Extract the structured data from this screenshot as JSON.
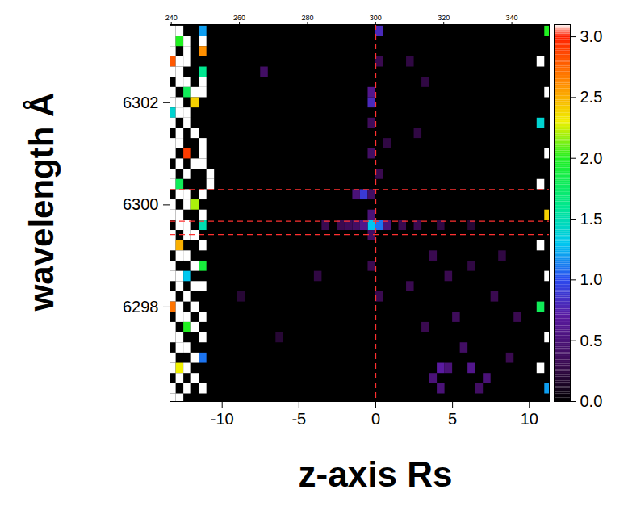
{
  "chart_data": {
    "type": "heatmap",
    "x_label": "z-axis Rs",
    "y_label": "wavelength Å",
    "xlim": [
      -13.4,
      11.3
    ],
    "xticks": [
      -10,
      -5,
      0,
      5,
      10
    ],
    "x2lim": [
      239.6,
      351
    ],
    "x2ticks": [
      240,
      260,
      280,
      300,
      320,
      340
    ],
    "ylim": [
      6296.15,
      6303.53
    ],
    "yticks": [
      6298,
      6300,
      6302
    ],
    "cell_size": {
      "z": 0.5,
      "wavelength": 0.2
    },
    "cells": [
      [
        -13.25,
        6303.4,
        3.3
      ],
      [
        -12.75,
        6303.4,
        3.3
      ],
      [
        -11.25,
        6303.4,
        1.2
      ],
      [
        -13.25,
        6303.2,
        3.3
      ],
      [
        -12.75,
        6303.2,
        2.0
      ],
      [
        -12.25,
        6303.2,
        3.3
      ],
      [
        -11.25,
        6303.2,
        3.3
      ],
      [
        -13.25,
        6303.0,
        3.3
      ],
      [
        -12.25,
        6303.0,
        3.3
      ],
      [
        -11.25,
        6303.0,
        2.6
      ],
      [
        -13.25,
        6302.8,
        2.8
      ],
      [
        -12.75,
        6302.8,
        3.3
      ],
      [
        -12.25,
        6302.8,
        3.3
      ],
      [
        -13.25,
        6302.6,
        3.3
      ],
      [
        -12.75,
        6302.6,
        3.3
      ],
      [
        -11.25,
        6302.6,
        1.6
      ],
      [
        -12.75,
        6302.4,
        3.3
      ],
      [
        -12.25,
        6302.4,
        3.3
      ],
      [
        -11.25,
        6302.4,
        3.3
      ],
      [
        -13.25,
        6302.2,
        3.3
      ],
      [
        -12.25,
        6302.2,
        1.8
      ],
      [
        -11.75,
        6302.2,
        3.3
      ],
      [
        -11.25,
        6302.2,
        3.3
      ],
      [
        -13.25,
        6302.0,
        3.3
      ],
      [
        -12.75,
        6302.0,
        3.3
      ],
      [
        -11.75,
        6302.0,
        2.4
      ],
      [
        -13.25,
        6301.8,
        1.4
      ],
      [
        -12.75,
        6301.8,
        3.3
      ],
      [
        -12.25,
        6301.8,
        3.3
      ],
      [
        -13.25,
        6301.6,
        3.3
      ],
      [
        -12.25,
        6301.6,
        3.3
      ],
      [
        -12.75,
        6301.4,
        3.3
      ],
      [
        -11.75,
        6301.4,
        3.3
      ],
      [
        -13.25,
        6301.2,
        3.3
      ],
      [
        -12.75,
        6301.2,
        3.3
      ],
      [
        -11.25,
        6301.2,
        3.3
      ],
      [
        -13.25,
        6301.0,
        3.3
      ],
      [
        -12.25,
        6301.0,
        2.9
      ],
      [
        -11.25,
        6301.0,
        3.3
      ],
      [
        -12.75,
        6300.8,
        3.3
      ],
      [
        -11.75,
        6300.8,
        3.3
      ],
      [
        -11.25,
        6300.8,
        3.3
      ],
      [
        -13.25,
        6300.6,
        3.3
      ],
      [
        -12.25,
        6300.6,
        3.3
      ],
      [
        -10.75,
        6300.6,
        3.3
      ],
      [
        -13.25,
        6300.4,
        3.3
      ],
      [
        -12.75,
        6300.4,
        1.8
      ],
      [
        -10.75,
        6300.4,
        3.3
      ],
      [
        -12.75,
        6300.2,
        3.3
      ],
      [
        -12.25,
        6300.2,
        3.3
      ],
      [
        -11.25,
        6300.2,
        3.3
      ],
      [
        -13.25,
        6300.0,
        3.3
      ],
      [
        -12.25,
        6300.0,
        3.3
      ],
      [
        -11.75,
        6300.0,
        2.2
      ],
      [
        -13.25,
        6299.8,
        3.3
      ],
      [
        -12.75,
        6299.8,
        3.3
      ],
      [
        -11.25,
        6299.8,
        3.3
      ],
      [
        -12.75,
        6299.6,
        3.3
      ],
      [
        -12.25,
        6299.6,
        3.3
      ],
      [
        -11.25,
        6299.6,
        1.5
      ],
      [
        -13.25,
        6299.4,
        3.3
      ],
      [
        -12.25,
        6299.4,
        3.3
      ],
      [
        -11.75,
        6299.4,
        3.3
      ],
      [
        -13.25,
        6299.2,
        3.3
      ],
      [
        -12.75,
        6299.2,
        2.5
      ],
      [
        -11.25,
        6299.2,
        3.3
      ],
      [
        -12.75,
        6299.0,
        3.3
      ],
      [
        -12.25,
        6299.0,
        3.3
      ],
      [
        -13.25,
        6298.8,
        3.3
      ],
      [
        -11.75,
        6298.8,
        3.3
      ],
      [
        -11.25,
        6298.8,
        1.9
      ],
      [
        -13.25,
        6298.6,
        3.3
      ],
      [
        -12.75,
        6298.6,
        3.3
      ],
      [
        -12.25,
        6298.6,
        1.3
      ],
      [
        -12.75,
        6298.4,
        3.3
      ],
      [
        -11.75,
        6298.4,
        3.3
      ],
      [
        -11.25,
        6298.4,
        3.3
      ],
      [
        -13.25,
        6298.2,
        3.3
      ],
      [
        -12.25,
        6298.2,
        3.3
      ],
      [
        -13.25,
        6298.0,
        2.7
      ],
      [
        -12.75,
        6298.0,
        3.3
      ],
      [
        -11.75,
        6298.0,
        3.3
      ],
      [
        -12.75,
        6297.8,
        3.3
      ],
      [
        -12.25,
        6297.8,
        3.3
      ],
      [
        -11.25,
        6297.8,
        3.3
      ],
      [
        -13.25,
        6297.6,
        3.3
      ],
      [
        -12.25,
        6297.6,
        2.0
      ],
      [
        -11.75,
        6297.6,
        3.3
      ],
      [
        -13.25,
        6297.4,
        3.3
      ],
      [
        -12.75,
        6297.4,
        3.3
      ],
      [
        -11.25,
        6297.4,
        3.3
      ],
      [
        -12.75,
        6297.2,
        3.3
      ],
      [
        -12.25,
        6297.2,
        3.3
      ],
      [
        -13.25,
        6297.0,
        3.3
      ],
      [
        -11.75,
        6297.0,
        3.3
      ],
      [
        -11.25,
        6297.0,
        1.1
      ],
      [
        -13.25,
        6296.8,
        3.3
      ],
      [
        -12.75,
        6296.8,
        2.3
      ],
      [
        -12.25,
        6296.8,
        3.3
      ],
      [
        -12.75,
        6296.6,
        3.3
      ],
      [
        -11.75,
        6296.6,
        3.3
      ],
      [
        -13.25,
        6296.4,
        3.3
      ],
      [
        -12.25,
        6296.4,
        3.3
      ],
      [
        -11.25,
        6296.4,
        3.3
      ],
      [
        -13.25,
        6296.2,
        3.3
      ],
      [
        -12.75,
        6296.2,
        3.3
      ],
      [
        11.25,
        6303.4,
        2.0
      ],
      [
        10.75,
        6302.8,
        3.3
      ],
      [
        11.25,
        6302.2,
        3.3
      ],
      [
        10.75,
        6301.6,
        1.4
      ],
      [
        11.25,
        6301.0,
        3.3
      ],
      [
        10.75,
        6300.4,
        3.3
      ],
      [
        11.25,
        6299.8,
        2.4
      ],
      [
        10.75,
        6299.2,
        3.3
      ],
      [
        11.25,
        6298.6,
        3.3
      ],
      [
        10.75,
        6298.0,
        1.8
      ],
      [
        11.25,
        6297.4,
        3.3
      ],
      [
        10.75,
        6296.8,
        3.3
      ],
      [
        11.25,
        6296.4,
        1.2
      ],
      [
        -0.25,
        6299.6,
        1.3
      ],
      [
        0.25,
        6299.6,
        1.1
      ],
      [
        -0.75,
        6299.6,
        0.6
      ],
      [
        0.75,
        6299.6,
        0.5
      ],
      [
        -0.25,
        6299.8,
        0.5
      ],
      [
        -0.25,
        6299.4,
        0.4
      ],
      [
        -3.25,
        6299.6,
        0.3
      ],
      [
        -2.25,
        6299.6,
        0.3
      ],
      [
        -1.75,
        6299.6,
        0.35
      ],
      [
        -1.25,
        6299.6,
        0.4
      ],
      [
        1.75,
        6299.6,
        0.3
      ],
      [
        2.75,
        6299.6,
        0.3
      ],
      [
        4.25,
        6299.6,
        0.25
      ],
      [
        6.25,
        6299.6,
        0.2
      ],
      [
        -0.75,
        6300.2,
        0.9
      ],
      [
        -1.25,
        6300.2,
        0.5
      ],
      [
        -0.25,
        6300.2,
        0.4
      ],
      [
        -0.25,
        6302.0,
        0.8
      ],
      [
        -0.25,
        6302.2,
        0.6
      ],
      [
        0.25,
        6303.4,
        0.8
      ],
      [
        -0.25,
        6301.6,
        0.35
      ],
      [
        -0.25,
        6301.0,
        0.4
      ],
      [
        0.25,
        6300.6,
        0.3
      ],
      [
        0.25,
        6302.8,
        0.3
      ],
      [
        0.75,
        6301.2,
        0.25
      ],
      [
        -0.25,
        6298.8,
        0.3
      ],
      [
        0.25,
        6298.2,
        0.3
      ],
      [
        -7.25,
        6302.6,
        0.4
      ],
      [
        2.25,
        6302.8,
        0.25
      ],
      [
        3.25,
        6302.4,
        0.25
      ],
      [
        2.75,
        6301.4,
        0.25
      ],
      [
        -3.75,
        6298.6,
        0.25
      ],
      [
        -6.25,
        6297.4,
        0.2
      ],
      [
        -8.75,
        6298.2,
        0.2
      ],
      [
        4.25,
        6296.8,
        0.7
      ],
      [
        3.75,
        6296.6,
        0.5
      ],
      [
        4.75,
        6296.8,
        0.5
      ],
      [
        5.75,
        6297.2,
        0.4
      ],
      [
        6.25,
        6296.8,
        0.6
      ],
      [
        7.25,
        6296.6,
        0.5
      ],
      [
        8.75,
        6297.0,
        0.3
      ],
      [
        3.25,
        6297.6,
        0.3
      ],
      [
        5.25,
        6297.8,
        0.35
      ],
      [
        7.75,
        6298.2,
        0.3
      ],
      [
        2.25,
        6298.4,
        0.3
      ],
      [
        4.75,
        6298.6,
        0.3
      ],
      [
        6.25,
        6298.8,
        0.25
      ],
      [
        3.75,
        6299.0,
        0.3
      ],
      [
        9.25,
        6297.8,
        0.3
      ],
      [
        8.25,
        6299.0,
        0.25
      ],
      [
        4.25,
        6296.4,
        0.5
      ],
      [
        6.75,
        6296.4,
        0.4
      ]
    ],
    "colorbar": {
      "range": [
        0,
        3.1
      ],
      "ticks": [
        {
          "value": 0,
          "label": "0.0"
        },
        {
          "value": 0.5,
          "label": "0.5"
        },
        {
          "value": 1,
          "label": "1.0"
        },
        {
          "value": 1.5,
          "label": "1.5"
        },
        {
          "value": 2,
          "label": "2.0"
        },
        {
          "value": 2.5,
          "label": "2.5"
        },
        {
          "value": 3,
          "label": "3.0"
        }
      ],
      "stops": [
        0,
        0.3,
        0.7,
        1.0,
        1.3,
        1.6,
        2.0,
        2.3,
        2.6,
        3.0,
        3.1
      ],
      "colors": [
        "#000000",
        "#3a0a50",
        "#5a1aa0",
        "#2a4af0",
        "#00c8f0",
        "#00e890",
        "#20f020",
        "#f0f000",
        "#ff9000",
        "#ff2000",
        "#ffffff"
      ]
    },
    "reference_lines": {
      "x": [
        0
      ],
      "y": [
        6300.3,
        6299.68,
        6299.42
      ],
      "color": "#ff3030",
      "line_style": "dashed"
    }
  }
}
